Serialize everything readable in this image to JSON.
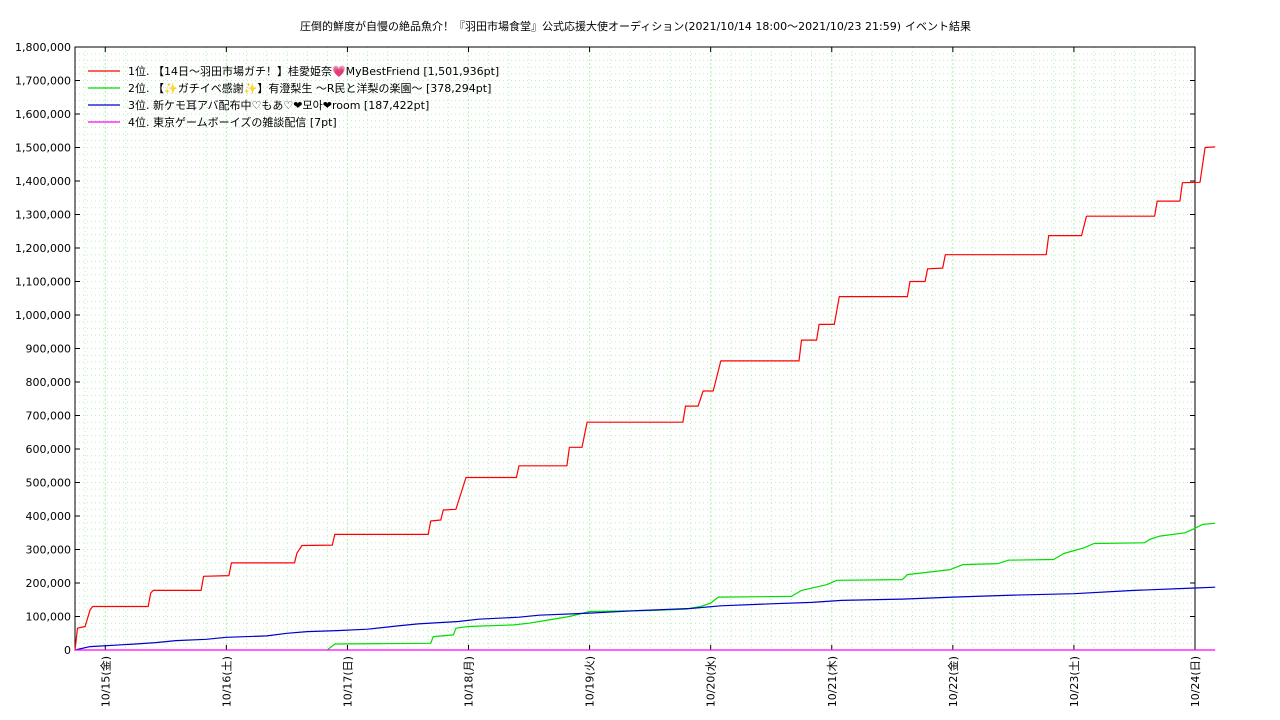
{
  "chart_data": {
    "type": "line",
    "title": "圧倒的鮮度が自慢の絶品魚介！『羽田市場食堂』公式応援大使オーディション(2021/10/14 18:00〜2021/10/23 21:59)",
    "subtitle": "イベント結果",
    "xlabel": "",
    "ylabel": "",
    "x_tick_labels": [
      "10/15(金)",
      "10/16(土)",
      "10/17(日)",
      "10/18(月)",
      "10/19(火)",
      "10/20(水)",
      "10/21(木)",
      "10/22(金)",
      "10/23(土)",
      "10/24(日)"
    ],
    "y_tick_labels": [
      "0",
      "100,000",
      "200,000",
      "300,000",
      "400,000",
      "500,000",
      "600,000",
      "700,000",
      "800,000",
      "900,000",
      "1,000,000",
      "1,100,000",
      "1,200,000",
      "1,300,000",
      "1,400,000",
      "1,500,000",
      "1,600,000",
      "1,700,000",
      "1,800,000"
    ],
    "xlim": [
      "2021-10-14 18:00",
      "2021-10-24 00:00"
    ],
    "ylim": [
      0,
      1800000
    ],
    "grid": true,
    "legend_position": "top-left",
    "series": [
      {
        "name": "1位. 【14日〜羽田市場ガチ！】桂愛姫奈💗MyBestFriend [1,501,936pt]",
        "color": "#ff0000",
        "points": [
          [
            "2021-10-14 18:00",
            0
          ],
          [
            "2021-10-14 18:30",
            65000
          ],
          [
            "2021-10-14 20:00",
            70000
          ],
          [
            "2021-10-14 21:00",
            120000
          ],
          [
            "2021-10-14 21:30",
            130000
          ],
          [
            "2021-10-15 08:30",
            130000
          ],
          [
            "2021-10-15 09:00",
            170000
          ],
          [
            "2021-10-15 09:30",
            178000
          ],
          [
            "2021-10-15 19:00",
            178000
          ],
          [
            "2021-10-15 19:30",
            220000
          ],
          [
            "2021-10-16 00:30",
            222000
          ],
          [
            "2021-10-16 01:00",
            260000
          ],
          [
            "2021-10-16 13:30",
            260000
          ],
          [
            "2021-10-16 14:00",
            290000
          ],
          [
            "2021-10-16 15:00",
            312000
          ],
          [
            "2021-10-16 21:00",
            313000
          ],
          [
            "2021-10-16 21:30",
            345000
          ],
          [
            "2021-10-17 16:00",
            345000
          ],
          [
            "2021-10-17 16:30",
            385000
          ],
          [
            "2021-10-17 18:30",
            388000
          ],
          [
            "2021-10-17 19:00",
            418000
          ],
          [
            "2021-10-17 21:30",
            420000
          ],
          [
            "2021-10-17 23:30",
            515000
          ],
          [
            "2021-10-18 09:30",
            515000
          ],
          [
            "2021-10-18 10:00",
            550000
          ],
          [
            "2021-10-18 19:30",
            550000
          ],
          [
            "2021-10-18 20:00",
            605000
          ],
          [
            "2021-10-18 22:30",
            605000
          ],
          [
            "2021-10-18 23:30",
            680000
          ],
          [
            "2021-10-19 18:30",
            680000
          ],
          [
            "2021-10-19 19:00",
            728000
          ],
          [
            "2021-10-19 21:30",
            728000
          ],
          [
            "2021-10-19 22:30",
            773000
          ],
          [
            "2021-10-20 00:30",
            773000
          ],
          [
            "2021-10-20 02:00",
            863000
          ],
          [
            "2021-10-20 17:30",
            863000
          ],
          [
            "2021-10-20 18:00",
            925000
          ],
          [
            "2021-10-20 21:00",
            925000
          ],
          [
            "2021-10-20 21:30",
            972000
          ],
          [
            "2021-10-21 00:30",
            972000
          ],
          [
            "2021-10-21 01:30",
            1055000
          ],
          [
            "2021-10-21 15:00",
            1055000
          ],
          [
            "2021-10-21 15:30",
            1100000
          ],
          [
            "2021-10-21 18:30",
            1100000
          ],
          [
            "2021-10-21 19:00",
            1138000
          ],
          [
            "2021-10-21 22:00",
            1140000
          ],
          [
            "2021-10-21 22:30",
            1180000
          ],
          [
            "2021-10-22 18:30",
            1180000
          ],
          [
            "2021-10-22 19:00",
            1237000
          ],
          [
            "2021-10-23 01:30",
            1237000
          ],
          [
            "2021-10-23 02:30",
            1295000
          ],
          [
            "2021-10-23 16:00",
            1295000
          ],
          [
            "2021-10-23 16:30",
            1340000
          ],
          [
            "2021-10-23 21:00",
            1340000
          ],
          [
            "2021-10-23 21:30",
            1395000
          ],
          [
            "2021-10-24 01:00",
            1396000
          ],
          [
            "2021-10-24 02:00",
            1500000
          ],
          [
            "2021-10-24 04:00",
            1501936
          ]
        ]
      },
      {
        "name": "2位. 【✨ガチイベ感謝✨】有澄梨生 〜R民と洋梨の楽園〜 [378,294pt]",
        "color": "#00dd00",
        "points": [
          [
            "2021-10-16 20:00",
            0
          ],
          [
            "2021-10-16 21:30",
            18000
          ],
          [
            "2021-10-17 16:30",
            20000
          ],
          [
            "2021-10-17 17:00",
            40000
          ],
          [
            "2021-10-17 21:00",
            45000
          ],
          [
            "2021-10-17 21:30",
            65000
          ],
          [
            "2021-10-18 00:00",
            70000
          ],
          [
            "2021-10-18 09:00",
            75000
          ],
          [
            "2021-10-18 12:00",
            80000
          ],
          [
            "2021-10-18 16:00",
            90000
          ],
          [
            "2021-10-18 20:00",
            100000
          ],
          [
            "2021-10-19 00:00",
            115000
          ],
          [
            "2021-10-19 12:00",
            118000
          ],
          [
            "2021-10-19 19:00",
            122000
          ],
          [
            "2021-10-19 22:00",
            130000
          ],
          [
            "2021-10-20 00:00",
            140000
          ],
          [
            "2021-10-20 01:30",
            158000
          ],
          [
            "2021-10-20 16:00",
            160000
          ],
          [
            "2021-10-20 18:00",
            178000
          ],
          [
            "2021-10-20 23:00",
            195000
          ],
          [
            "2021-10-21 01:00",
            208000
          ],
          [
            "2021-10-21 14:00",
            210000
          ],
          [
            "2021-10-21 15:00",
            225000
          ],
          [
            "2021-10-21 23:30",
            240000
          ],
          [
            "2021-10-22 02:00",
            255000
          ],
          [
            "2021-10-22 09:00",
            258000
          ],
          [
            "2021-10-22 11:00",
            268000
          ],
          [
            "2021-10-22 20:00",
            270000
          ],
          [
            "2021-10-22 22:00",
            288000
          ],
          [
            "2021-10-23 02:00",
            305000
          ],
          [
            "2021-10-23 04:00",
            318000
          ],
          [
            "2021-10-23 14:00",
            320000
          ],
          [
            "2021-10-23 15:00",
            330000
          ],
          [
            "2021-10-23 17:00",
            340000
          ],
          [
            "2021-10-23 22:00",
            350000
          ],
          [
            "2021-10-23 23:30",
            360000
          ],
          [
            "2021-10-24 01:30",
            375000
          ],
          [
            "2021-10-24 04:00",
            378294
          ]
        ]
      },
      {
        "name": "3位. 新ケモ耳アバ配布中♡もあ♡❤모아❤room [187,422pt]",
        "color": "#0000cc",
        "points": [
          [
            "2021-10-14 18:00",
            0
          ],
          [
            "2021-10-14 21:00",
            10000
          ],
          [
            "2021-10-15 06:00",
            18000
          ],
          [
            "2021-10-15 10:00",
            22000
          ],
          [
            "2021-10-15 14:00",
            28000
          ],
          [
            "2021-10-15 20:00",
            32000
          ],
          [
            "2021-10-16 00:00",
            38000
          ],
          [
            "2021-10-16 08:00",
            42000
          ],
          [
            "2021-10-16 12:00",
            50000
          ],
          [
            "2021-10-16 16:00",
            55000
          ],
          [
            "2021-10-16 22:00",
            58000
          ],
          [
            "2021-10-17 04:00",
            62000
          ],
          [
            "2021-10-17 10:00",
            72000
          ],
          [
            "2021-10-17 14:00",
            78000
          ],
          [
            "2021-10-17 22:00",
            85000
          ],
          [
            "2021-10-18 02:00",
            92000
          ],
          [
            "2021-10-18 10:00",
            98000
          ],
          [
            "2021-10-18 14:00",
            104000
          ],
          [
            "2021-10-19 00:00",
            110000
          ],
          [
            "2021-10-19 10:00",
            118000
          ],
          [
            "2021-10-19 20:00",
            124000
          ],
          [
            "2021-10-20 02:00",
            132000
          ],
          [
            "2021-10-20 12:00",
            138000
          ],
          [
            "2021-10-20 20:00",
            142000
          ],
          [
            "2021-10-21 02:00",
            148000
          ],
          [
            "2021-10-21 14:00",
            152000
          ],
          [
            "2021-10-22 00:00",
            158000
          ],
          [
            "2021-10-22 12:00",
            164000
          ],
          [
            "2021-10-23 00:00",
            168000
          ],
          [
            "2021-10-23 12:00",
            178000
          ],
          [
            "2021-10-24 00:00",
            185000
          ],
          [
            "2021-10-24 04:00",
            187422
          ]
        ]
      },
      {
        "name": "4位. 東京ゲームボーイズの雑談配信 [7pt]",
        "color": "#ff00ff",
        "points": [
          [
            "2021-10-14 18:00",
            0
          ],
          [
            "2021-10-24 04:00",
            7
          ]
        ]
      }
    ]
  }
}
